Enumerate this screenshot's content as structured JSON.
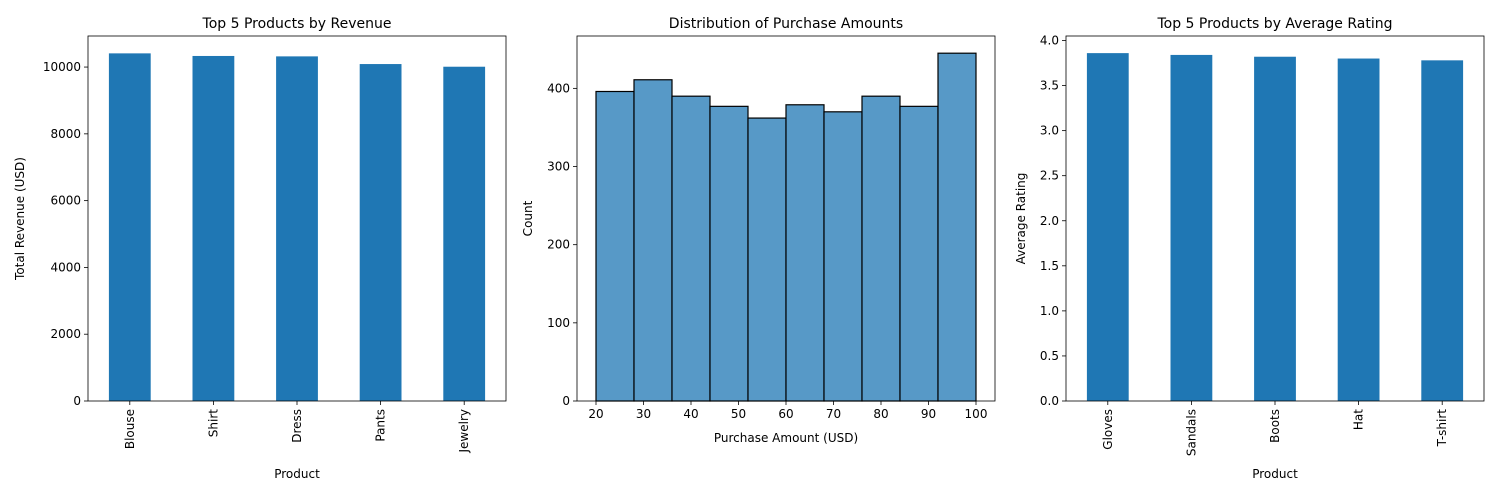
{
  "chart_data": [
    {
      "type": "bar",
      "title": "Top 5 Products by Revenue",
      "xlabel": "Product",
      "ylabel": "Total Revenue (USD)",
      "categories": [
        "Blouse",
        "Shirt",
        "Dress",
        "Pants",
        "Jewelry"
      ],
      "values": [
        10410,
        10332,
        10320,
        10090,
        10010
      ],
      "ylim": [
        0,
        10930
      ],
      "yticks": [
        0,
        2000,
        4000,
        6000,
        8000,
        10000
      ],
      "color": "#1f77b4",
      "grid": false
    },
    {
      "type": "histogram",
      "title": "Distribution of Purchase Amounts",
      "xlabel": "Purchase Amount (USD)",
      "ylabel": "Count",
      "bin_edges": [
        20,
        28,
        36,
        44,
        52,
        60,
        68,
        76,
        84,
        92,
        100
      ],
      "counts": [
        396,
        411,
        390,
        377,
        362,
        379,
        370,
        390,
        377,
        445
      ],
      "xlim": [
        16,
        104
      ],
      "ylim": [
        0,
        467
      ],
      "xticks": [
        20,
        30,
        40,
        50,
        60,
        70,
        80,
        90,
        100
      ],
      "yticks": [
        0,
        100,
        200,
        300,
        400
      ],
      "color": "#5799c7",
      "edgecolor": "#000000",
      "grid": false
    },
    {
      "type": "bar",
      "title": "Top 5 Products by Average Rating",
      "xlabel": "Product",
      "ylabel": "Average Rating",
      "categories": [
        "Gloves",
        "Sandals",
        "Boots",
        "Hat",
        "T-shirt"
      ],
      "values": [
        3.86,
        3.84,
        3.82,
        3.8,
        3.78
      ],
      "ylim": [
        0,
        4.05
      ],
      "yticks": [
        0.0,
        0.5,
        1.0,
        1.5,
        2.0,
        2.5,
        3.0,
        3.5,
        4.0
      ],
      "tick_decimals": 1,
      "color": "#1f77b4",
      "grid": false
    }
  ]
}
